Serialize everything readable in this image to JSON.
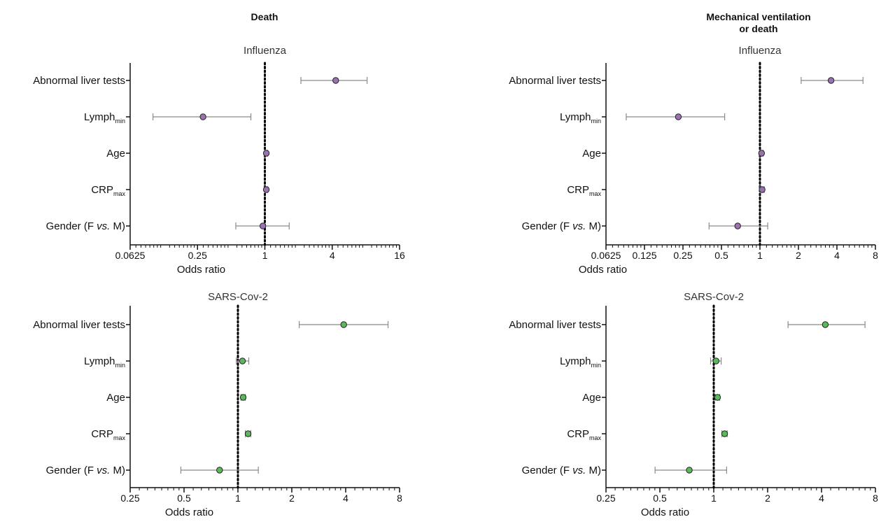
{
  "column_titles": {
    "left": "Death",
    "right_line1": "Mechanical ventilation",
    "right_line2": "or death"
  },
  "colors": {
    "influenza_marker": "#9b72b0",
    "sars_marker": "#5cb85c",
    "errorbar": "#8a8a8a",
    "axis": "#111111"
  },
  "chart_data": [
    {
      "type": "scatter",
      "subtype": "forest-plot",
      "column": "Death",
      "title": "Influenza",
      "xlabel": "Odds ratio",
      "xscale": "log2",
      "xlim": [
        0.0625,
        16
      ],
      "xticks": [
        0.0625,
        0.25,
        1,
        4,
        16
      ],
      "xtick_labels": [
        "0.0625",
        "0.25",
        "1",
        "4",
        "16"
      ],
      "reference_line": 1,
      "marker_color": "#9b72b0",
      "categories": [
        "Abnormal liver tests",
        "Lymph_min",
        "Age",
        "CRP_max",
        "Gender (F vs. M)"
      ],
      "or": [
        4.3,
        0.28,
        1.03,
        1.03,
        0.96
      ],
      "ci_low": [
        2.1,
        0.1,
        1.0,
        1.0,
        0.55
      ],
      "ci_high": [
        8.2,
        0.75,
        1.06,
        1.06,
        1.65
      ]
    },
    {
      "type": "scatter",
      "subtype": "forest-plot",
      "column": "Mechanical ventilation or death",
      "title": "Influenza",
      "xlabel": "Odds ratio",
      "xscale": "log2",
      "xlim": [
        0.0625,
        8
      ],
      "xticks": [
        0.0625,
        0.125,
        0.25,
        0.5,
        1,
        2,
        4,
        8
      ],
      "xtick_labels": [
        "0.0625",
        "0.125",
        "0.25",
        "0.5",
        "1",
        "2",
        "4",
        "8"
      ],
      "reference_line": 1,
      "marker_color": "#9b72b0",
      "categories": [
        "Abnormal liver tests",
        "Lymph_min",
        "Age",
        "CRP_max",
        "Gender (F vs. M)"
      ],
      "or": [
        3.6,
        0.23,
        1.03,
        1.04,
        0.67
      ],
      "ci_low": [
        2.1,
        0.09,
        1.0,
        1.0,
        0.4
      ],
      "ci_high": [
        6.4,
        0.53,
        1.06,
        1.08,
        1.15
      ]
    },
    {
      "type": "scatter",
      "subtype": "forest-plot",
      "column": "Death",
      "title": "SARS-Cov-2",
      "xlabel": "Odds ratio",
      "xscale": "log2",
      "xlim": [
        0.25,
        8
      ],
      "xticks": [
        0.25,
        0.5,
        1,
        2,
        4,
        8
      ],
      "xtick_labels": [
        "0.25",
        "0.5",
        "1",
        "2",
        "4",
        "8"
      ],
      "reference_line": 1,
      "marker_color": "#5cb85c",
      "categories": [
        "Abnormal liver tests",
        "Lymph_min",
        "Age",
        "CRP_max",
        "Gender (F vs. M)"
      ],
      "or": [
        3.9,
        1.06,
        1.07,
        1.14,
        0.79
      ],
      "ci_low": [
        2.2,
        0.98,
        1.04,
        1.1,
        0.48
      ],
      "ci_high": [
        6.9,
        1.15,
        1.1,
        1.18,
        1.3
      ]
    },
    {
      "type": "scatter",
      "subtype": "forest-plot",
      "column": "Mechanical ventilation or death",
      "title": "SARS-Cov-2",
      "xlabel": "Odds ratio",
      "xscale": "log2",
      "xlim": [
        0.25,
        8
      ],
      "xticks": [
        0.25,
        0.5,
        1,
        2,
        4,
        8
      ],
      "xtick_labels": [
        "0.25",
        "0.5",
        "1",
        "2",
        "4",
        "8"
      ],
      "reference_line": 1,
      "marker_color": "#5cb85c",
      "categories": [
        "Abnormal liver tests",
        "Lymph_min",
        "Age",
        "CRP_max",
        "Gender (F vs. M)"
      ],
      "or": [
        4.2,
        1.03,
        1.05,
        1.15,
        0.73
      ],
      "ci_low": [
        2.6,
        0.96,
        1.02,
        1.11,
        0.47
      ],
      "ci_high": [
        7.0,
        1.1,
        1.08,
        1.19,
        1.18
      ]
    }
  ]
}
